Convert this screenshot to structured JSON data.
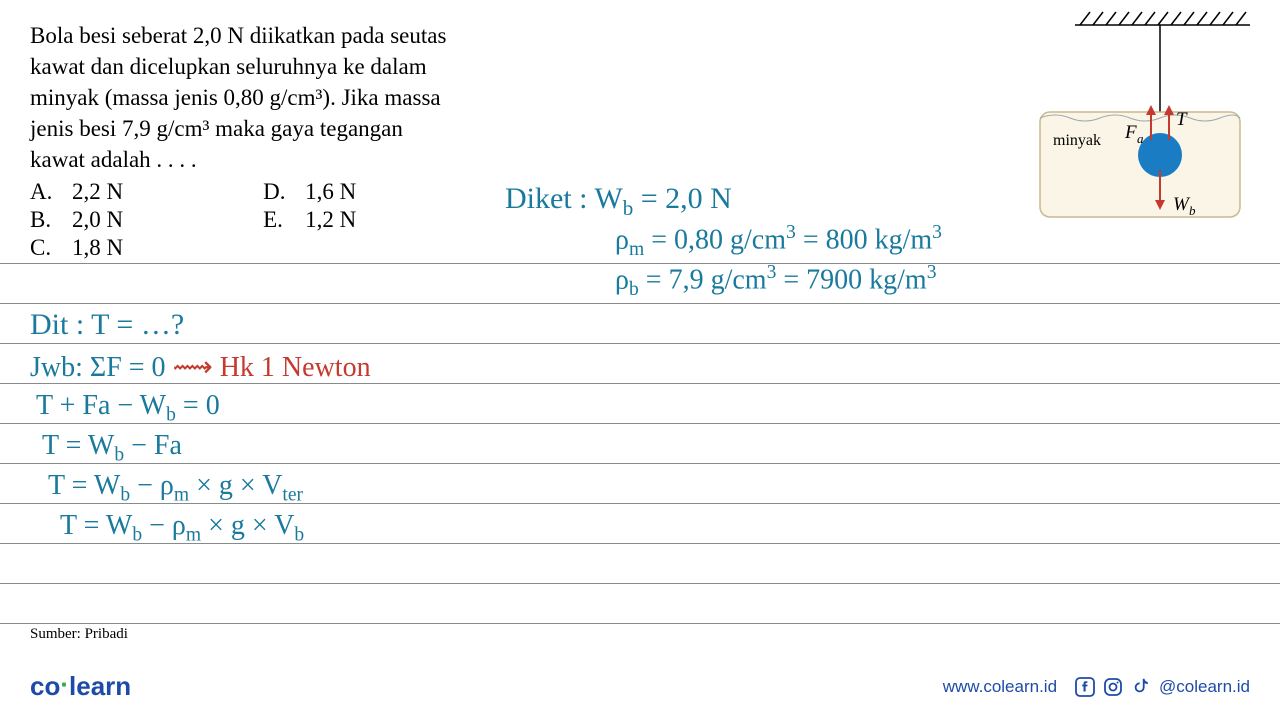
{
  "question": {
    "text_lines": [
      "Bola besi seberat 2,0 N diikatkan pada seutas",
      "kawat dan dicelupkan seluruhnya ke dalam",
      "minyak (massa jenis 0,80 g/cm³). Jika massa",
      "jenis besi 7,9 g/cm³ maka gaya tegangan",
      "kawat adalah . . . ."
    ],
    "options_col1": [
      {
        "label": "A.",
        "value": "2,2 N"
      },
      {
        "label": "B.",
        "value": "2,0 N"
      },
      {
        "label": "C.",
        "value": "1,8 N"
      }
    ],
    "options_col2": [
      {
        "label": "D.",
        "value": "1,6 N"
      },
      {
        "label": "E.",
        "value": "1,2 N"
      }
    ]
  },
  "diagram": {
    "label_minyak": "minyak",
    "label_Fa": "Fₐ",
    "label_T": "T",
    "label_Wb": "W_b",
    "ball_color": "#1a7dc4",
    "container_fill": "#fbf5e8",
    "ceiling_color": "#000000",
    "arrow_up_color": "#c43a2e",
    "arrow_down_color": "#c43a2e",
    "wire_color": "#000000"
  },
  "handwritten": {
    "diket": "Diket : W_b = 2,0 N",
    "rho_m": "ρ_m = 0,80 g/cm³ = 800 kg/m³",
    "rho_b": "ρ_b = 7,9 g/cm³ = 7900 kg/m³",
    "dit": "Dit : T = …?",
    "jwb_blue": "Jwb: ΣF = 0 ",
    "jwb_red": "⟶ Hk 1 Newton",
    "eq1": "T + Fa − W_b = 0",
    "eq2": "T = W_b − Fa",
    "eq3": "T = W_b − ρ_m × g × V_ter",
    "eq4": "T = W_b − ρ_m × g × V_b"
  },
  "source": "Sumber: Pribadi",
  "footer": {
    "logo_co": "co",
    "logo_learn": "learn",
    "url": "www.colearn.id",
    "handle": "@colearn.id"
  },
  "colors": {
    "hand_blue": "#1a7a9e",
    "hand_red": "#c43a2e",
    "brand_blue": "#1e4ba8",
    "brand_green": "#2aa84a",
    "rule": "#8a8a8a"
  }
}
